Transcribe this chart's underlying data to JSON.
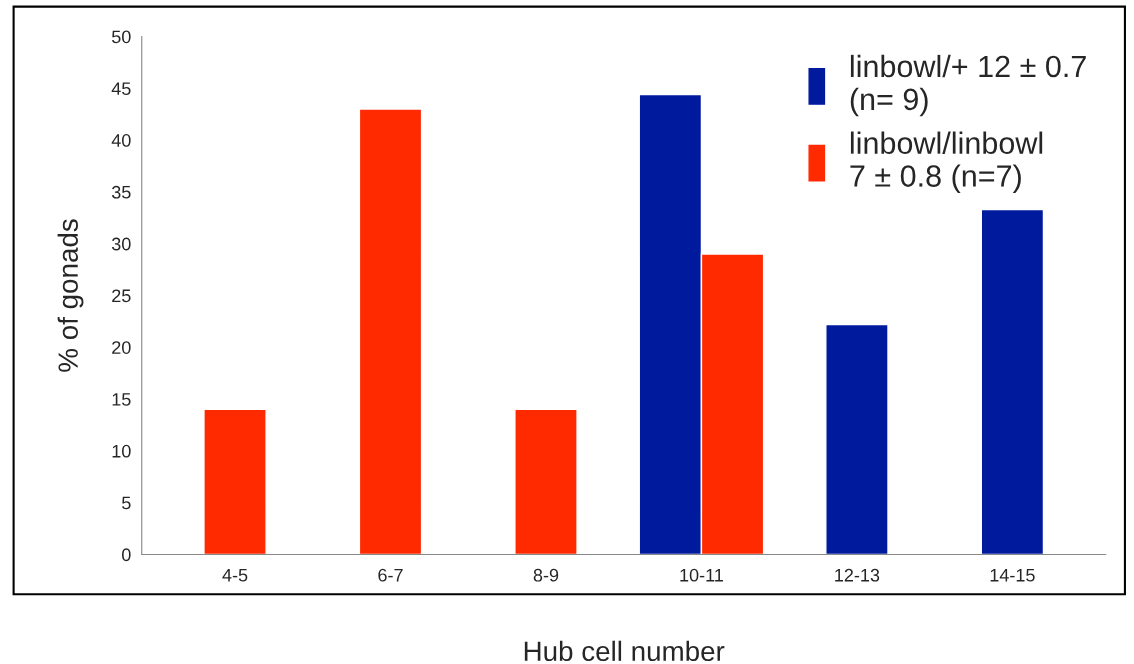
{
  "chart_data": {
    "type": "bar",
    "xlabel": "Hub cell number",
    "ylabel": "% of gonads",
    "categories": [
      "4-5",
      "6-7",
      "8-9",
      "10-11",
      "12-13",
      "14-15"
    ],
    "series": [
      {
        "name": "linbowl/+ 12 ± 0.7\n(n= 9)",
        "color": "#001a9e",
        "values": [
          null,
          null,
          null,
          44.4,
          22.2,
          33.3
        ]
      },
      {
        "name": "linbowl/linbowl\n7 ± 0.8 (n=7)",
        "color": "#ff2a00",
        "values": [
          14,
          43,
          14,
          29,
          null,
          null
        ]
      }
    ],
    "ylim": [
      0,
      50
    ],
    "yticks": [
      0,
      5,
      10,
      15,
      20,
      25,
      30,
      35,
      40,
      45,
      50
    ],
    "grid": false,
    "legend": "top right"
  }
}
